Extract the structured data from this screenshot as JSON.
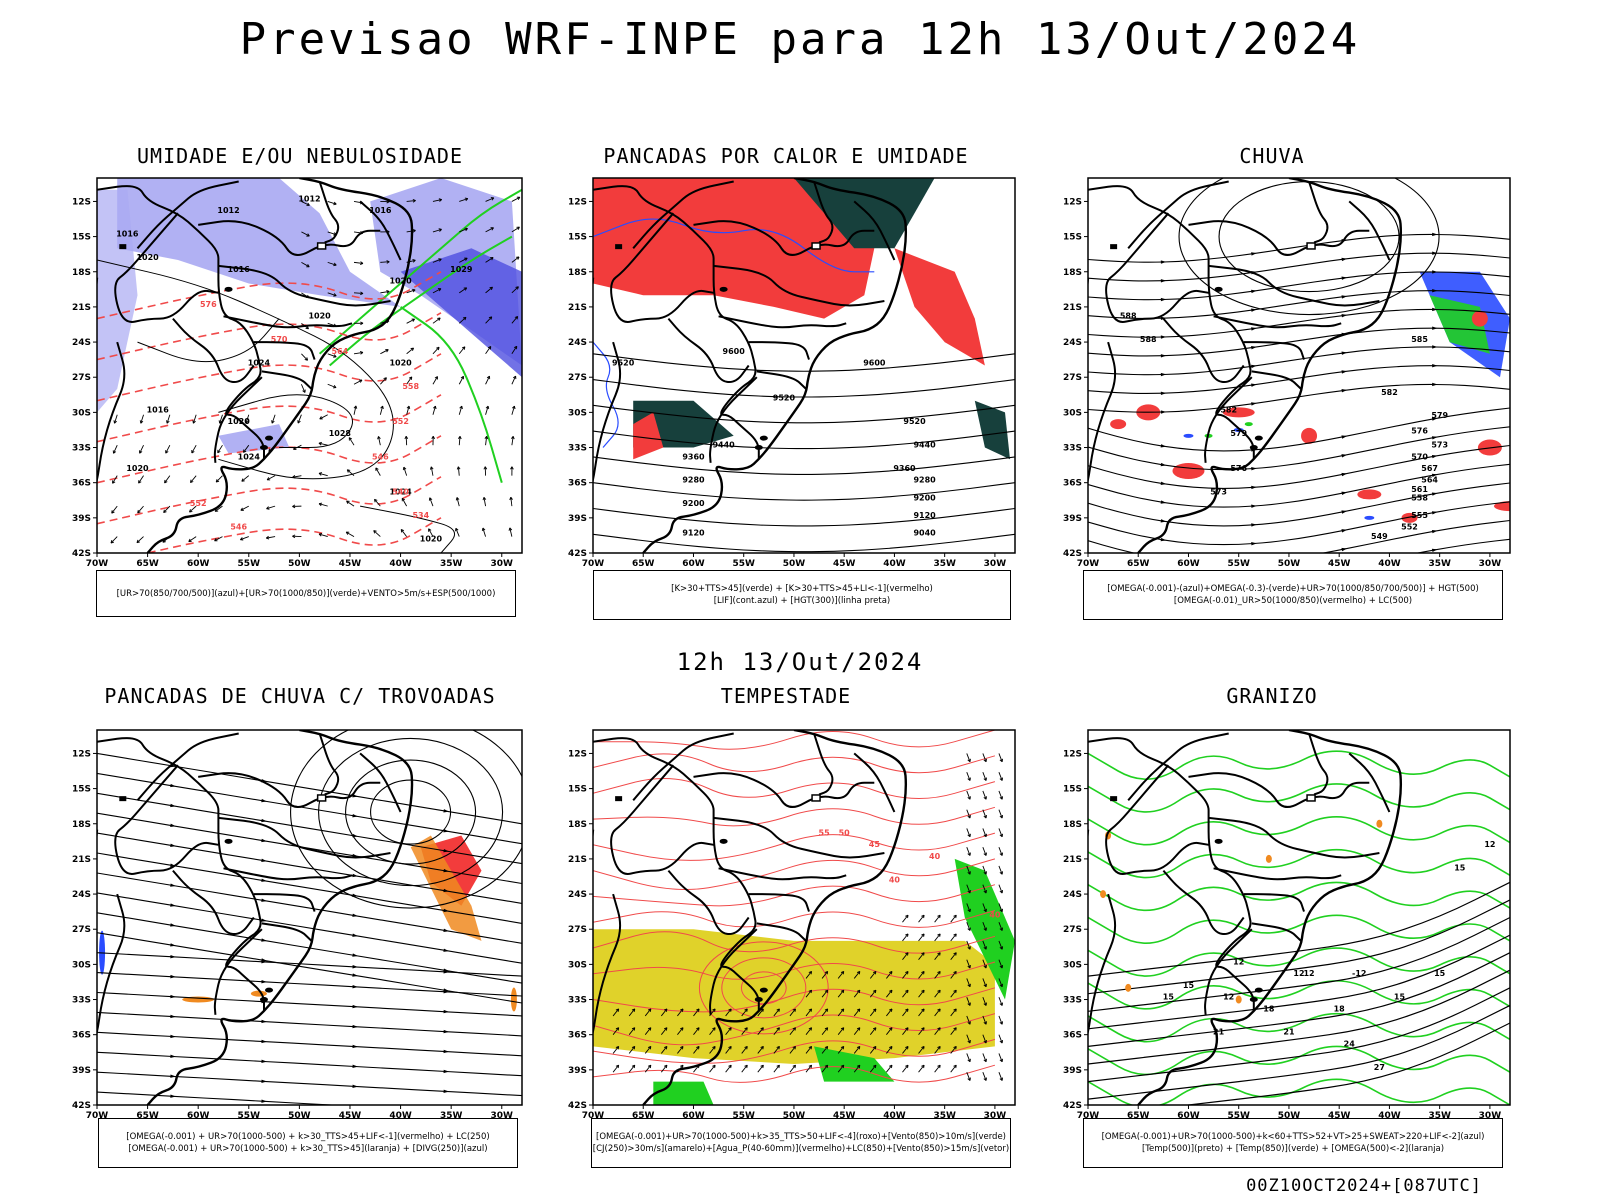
{
  "title": "Previsao WRF-INPE  para 12h 13/Out/2024",
  "mid_date": "12h 13/Out/2024",
  "footer": "00Z10OCT2024+[087UTC]",
  "lat_labels": [
    "12S",
    "15S",
    "18S",
    "21S",
    "24S",
    "27S",
    "30S",
    "33S",
    "36S",
    "39S",
    "42S"
  ],
  "lon_labels": [
    "70W",
    "65W",
    "60W",
    "55W",
    "50W",
    "45W",
    "40W",
    "35W",
    "30W"
  ],
  "colors": {
    "blue_shade": "#a9a9f2",
    "dark_blue_shade": "#4f4fe0",
    "red": "#f23c3c",
    "dark_teal": "#17403c",
    "green": "#20d020",
    "orange": "#f08a20",
    "yellow": "#e0d22a",
    "contour_red": "#f04a4a",
    "blue": "#2a4cff"
  },
  "panels": [
    {
      "id": "umidade",
      "title": "UMIDADE E/OU NEBULOSIDADE",
      "legend": [
        "[UR>70(850/700/500)](azul)+[UR>70(1000/850)](verde)+VENTO>5m/s+ESP(500/1000)"
      ],
      "labels": [
        "1016",
        "1012",
        "1012",
        "1016",
        "1020",
        "1020",
        "1016",
        "1020",
        "1024",
        "1024",
        "1028",
        "1020",
        "1016",
        "1020",
        "1024",
        "1029",
        "1020",
        "1024",
        "1020",
        "576",
        "570",
        "564",
        "558",
        "552",
        "546",
        "540",
        "534",
        "558",
        "552",
        "546"
      ]
    },
    {
      "id": "pancadas_calor",
      "title": "PANCADAS POR CALOR E UMIDADE",
      "legend": [
        "[K>30+TTS>45](verde) + [K>30+TTS>45+LI<-1](vermelho)",
        "[LIF](cont.azul) + [HGT(300)](linha preta)"
      ],
      "labels": [
        "9600",
        "9520",
        "9600",
        "9600",
        "9520",
        "9440",
        "9520",
        "9440",
        "9360",
        "9360",
        "9280",
        "9280",
        "9200",
        "9200",
        "9120",
        "9120",
        "9040",
        "9440"
      ]
    },
    {
      "id": "chuva",
      "title": "CHUVA",
      "legend": [
        "[OMEGA(-0.001)-(azul)+OMEGA(-0.3)-(verde)+UR>70(1000/850/700/500)] + HGT(500)",
        "[OMEGA(-0.01)_UR>50(1000/850)(vermelho) + LC(500)"
      ],
      "labels": [
        "588",
        "588",
        "585",
        "582",
        "579",
        "576",
        "573",
        "570",
        "567",
        "564",
        "561",
        "558",
        "555",
        "552",
        "549",
        "582",
        "579",
        "576",
        "573"
      ]
    },
    {
      "id": "pancadas_trovoadas",
      "title": "PANCADAS DE CHUVA C/ TROVOADAS",
      "legend": [
        "[OMEGA(-0.001) + UR>70(1000-500) + k>30_TTS>45+LIF<-1](vermelho) + LC(250)",
        "[OMEGA(-0.001) + UR>70(1000-500) + k>30_TTS>45](laranja) + [DIVG(250)](azul)"
      ],
      "labels": []
    },
    {
      "id": "tempestade",
      "title": "TEMPESTADE",
      "legend": [
        "[OMEGA(-0.001)+UR>70(1000-500)+k>35_TTS>50+LIF<-4](roxo)+[Vento(850)>10m/s](verde)",
        "[CJ(250)>30m/s](amarelo)+[Agua_P(40-60mm)](vermelho)+LC(850)+[Vento(850)>15m/s](vetor)"
      ],
      "labels": [
        "40",
        "40",
        "45",
        "50",
        "55",
        "40"
      ]
    },
    {
      "id": "granizo",
      "title": "GRANIZO",
      "legend": [
        "[OMEGA(-0.001)+UR>70(1000-500)+k<60+TTS>52+VT>25+SWEAT>220+LIF<-2](azul)",
        "[Temp(500)](preto) + [Temp(850)](verde) + [OMEGA(500)<-2](laranja)"
      ],
      "labels": [
        "15",
        "12",
        "9",
        "12",
        "15",
        "18",
        "21",
        "24",
        "27",
        "15",
        "12",
        "-12",
        "12",
        "15",
        "18",
        "15",
        "21"
      ]
    }
  ]
}
